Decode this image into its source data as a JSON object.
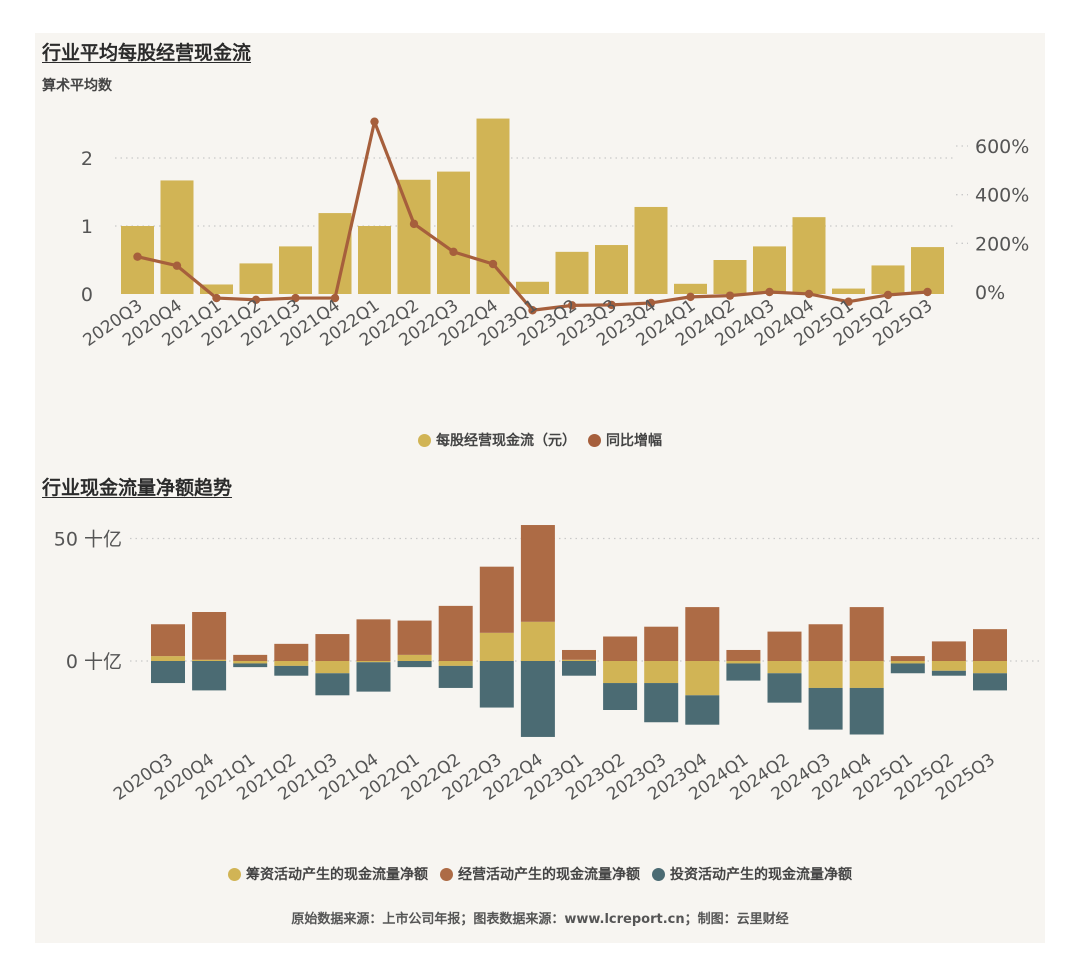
{
  "chart_data": [
    {
      "type": "bar",
      "title": "行业平均每股经营现金流",
      "subtitle": "算术平均数",
      "categories": [
        "2020Q3",
        "2020Q4",
        "2021Q1",
        "2021Q2",
        "2021Q3",
        "2021Q4",
        "2022Q1",
        "2022Q2",
        "2022Q3",
        "2022Q4",
        "2023Q1",
        "2023Q2",
        "2023Q3",
        "2023Q4",
        "2024Q1",
        "2024Q2",
        "2024Q3",
        "2024Q4",
        "2025Q1",
        "2025Q2",
        "2025Q3"
      ],
      "series": [
        {
          "name": "每股经营现金流（元）",
          "type": "bar",
          "axis": "left",
          "values": [
            1.0,
            1.67,
            0.14,
            0.45,
            0.7,
            1.19,
            1.0,
            1.68,
            1.8,
            2.58,
            0.18,
            0.62,
            0.72,
            1.28,
            0.15,
            0.5,
            0.7,
            1.13,
            0.08,
            0.42,
            0.69
          ]
        },
        {
          "name": "同比增幅",
          "type": "line",
          "axis": "right",
          "unit": "%",
          "values": [
            145,
            108,
            -25,
            -32,
            -25,
            -25,
            700,
            280,
            165,
            115,
            -75,
            -55,
            -53,
            -45,
            -20,
            -15,
            0,
            -8,
            -40,
            -12,
            0
          ]
        }
      ],
      "yticks_left": [
        "0",
        "1",
        "2"
      ],
      "ylim_left": [
        0,
        2.6
      ],
      "yticks_right": [
        "0%",
        "200%",
        "400%",
        "600%"
      ],
      "ylim_right": [
        0,
        700
      ],
      "grid": true,
      "legend_position": "bottom"
    },
    {
      "type": "bar",
      "stacked": true,
      "title": "行业现金流量净额趋势",
      "categories": [
        "2020Q3",
        "2020Q4",
        "2021Q1",
        "2021Q2",
        "2021Q3",
        "2021Q4",
        "2022Q1",
        "2022Q2",
        "2022Q3",
        "2022Q4",
        "2023Q1",
        "2023Q2",
        "2023Q3",
        "2023Q4",
        "2024Q1",
        "2024Q2",
        "2024Q3",
        "2024Q4",
        "2025Q1",
        "2025Q2",
        "2025Q3"
      ],
      "series": [
        {
          "name": "筹资活动产生的现金流量净额",
          "values": [
            2,
            0.5,
            -1,
            -2,
            -5,
            -0.5,
            2.5,
            -2,
            11.5,
            16,
            0.5,
            -9,
            -9,
            -14,
            -1,
            -5,
            -11,
            -11,
            -1,
            -4,
            -5
          ]
        },
        {
          "name": "经营活动产生的现金流量净额",
          "values": [
            13,
            19.5,
            2.5,
            7,
            11,
            17,
            14,
            22.5,
            27,
            39.5,
            4,
            10,
            14,
            22,
            4.5,
            12,
            15,
            22,
            2,
            8,
            13
          ]
        },
        {
          "name": "投资活动产生的现金流量净额",
          "values": [
            -9,
            -12,
            -1.5,
            -4,
            -9,
            -12,
            -2.5,
            -9,
            -19,
            -31,
            -6,
            -11,
            -16,
            -12,
            -7,
            -12,
            -17,
            -19,
            -4,
            -2,
            -7
          ]
        }
      ],
      "yticks": [
        "0 十亿",
        "50 十亿"
      ],
      "ylim": [
        -32,
        56
      ],
      "grid": true,
      "legend_position": "bottom"
    }
  ],
  "colors": {
    "gold": "#d1b455",
    "rust": "#ad6b45",
    "slate": "#4b6b73",
    "line": "#a65f3c",
    "grid": "#c9c9c9",
    "axis_text": "#555555"
  },
  "footer": "原始数据来源：上市公司年报；图表数据来源：www.lcreport.cn；制图：云里财经"
}
